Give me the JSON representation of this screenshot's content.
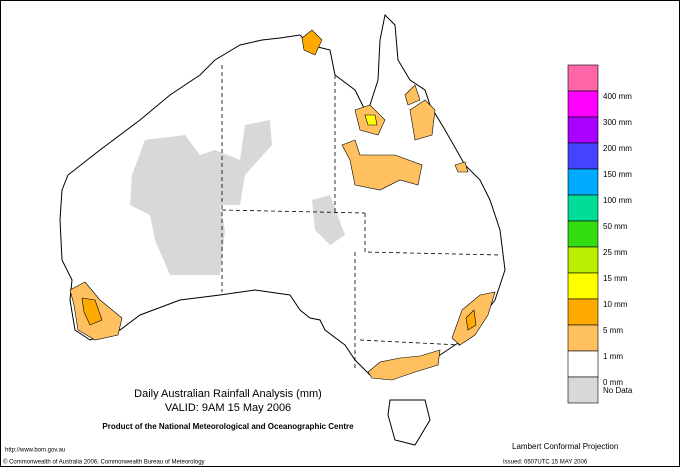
{
  "title": "Daily Australian Rainfall Analysis (mm)",
  "valid": "VALID: 9AM 15 May 2006",
  "product": "Product of the National Meteorological and Oceanographic Centre",
  "url": "http://www.bom.gov.au",
  "copyright": "© Commonwealth of Australia 2006, Commonwealth Bureau of Meteorology",
  "projection": "Lambert Conformal Projection",
  "issued": "Issued: 0507UTC 15 MAY 2006",
  "legend": {
    "colors": [
      "#ff66aa",
      "#ff00ff",
      "#aa00ff",
      "#4444ff",
      "#00aaff",
      "#00dd99",
      "#33dd11",
      "#bbee00",
      "#ffff00",
      "#ffaa00",
      "#ffc060",
      "#ffffff",
      "#d8d8d8"
    ],
    "labels": [
      "400 mm",
      "300 mm",
      "200 mm",
      "150 mm",
      "100 mm",
      "50 mm",
      "25 mm",
      "15 mm",
      "10 mm",
      "5 mm",
      "1 mm",
      "0 mm",
      "No Data"
    ]
  }
}
